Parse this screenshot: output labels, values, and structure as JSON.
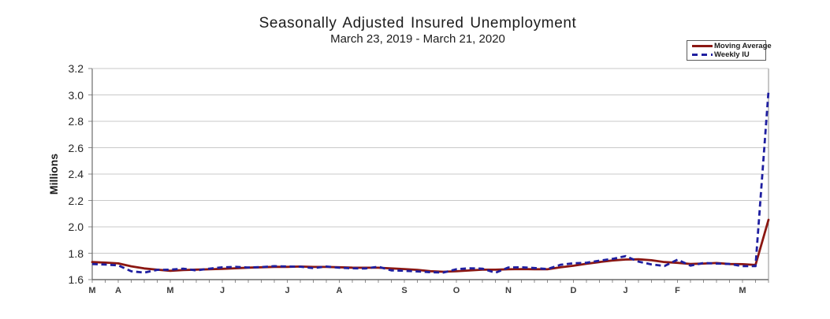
{
  "chart_data": {
    "type": "line",
    "title": "Seasonally Adjusted Insured Unemployment",
    "subtitle": "March 23, 2019 - March 21, 2020",
    "ylabel": "Millions",
    "xlabel": "",
    "ylim": [
      1.6,
      3.2
    ],
    "yticks": [
      1.6,
      1.8,
      2.0,
      2.2,
      2.4,
      2.6,
      2.8,
      3.0,
      3.2
    ],
    "grid": "horizontal",
    "legend_position": "top-right",
    "x_unit": "weekly observations, Mar 23 2019 - Mar 21 2020",
    "n_points": 53,
    "x_tick_positions": [
      0,
      2,
      6,
      10,
      15,
      19,
      24,
      28,
      32,
      37,
      41,
      45,
      50
    ],
    "x_tick_labels": [
      "M",
      "A",
      "M",
      "J",
      "J",
      "A",
      "S",
      "O",
      "N",
      "D",
      "J",
      "F",
      "M"
    ],
    "series": [
      {
        "name": "Moving Average",
        "color": "#8b1712",
        "line_style": "solid",
        "values": [
          1.733,
          1.729,
          1.723,
          1.701,
          1.685,
          1.675,
          1.667,
          1.672,
          1.676,
          1.678,
          1.682,
          1.686,
          1.691,
          1.694,
          1.697,
          1.697,
          1.699,
          1.696,
          1.696,
          1.694,
          1.691,
          1.69,
          1.69,
          1.685,
          1.68,
          1.674,
          1.664,
          1.66,
          1.663,
          1.669,
          1.675,
          1.675,
          1.678,
          1.68,
          1.679,
          1.678,
          1.693,
          1.705,
          1.72,
          1.733,
          1.745,
          1.752,
          1.754,
          1.747,
          1.733,
          1.727,
          1.719,
          1.722,
          1.726,
          1.718,
          1.717,
          1.711,
          2.054
        ]
      },
      {
        "name": "Weekly IU",
        "color": "#1f1fa0",
        "line_style": "dashed",
        "values": [
          1.718,
          1.714,
          1.708,
          1.663,
          1.653,
          1.674,
          1.676,
          1.683,
          1.67,
          1.683,
          1.693,
          1.697,
          1.692,
          1.695,
          1.702,
          1.7,
          1.698,
          1.687,
          1.699,
          1.69,
          1.686,
          1.684,
          1.698,
          1.67,
          1.667,
          1.662,
          1.656,
          1.654,
          1.679,
          1.686,
          1.683,
          1.652,
          1.692,
          1.693,
          1.688,
          1.68,
          1.712,
          1.724,
          1.728,
          1.744,
          1.757,
          1.778,
          1.737,
          1.715,
          1.703,
          1.751,
          1.706,
          1.726,
          1.722,
          1.719,
          1.702,
          1.702,
          3.029
        ]
      }
    ],
    "colors": {
      "gridline": "#c9c9c9",
      "axis_border": "#8c8c8c",
      "axis_main": "#6b6b6b",
      "tick": "#8c8c8c"
    }
  }
}
